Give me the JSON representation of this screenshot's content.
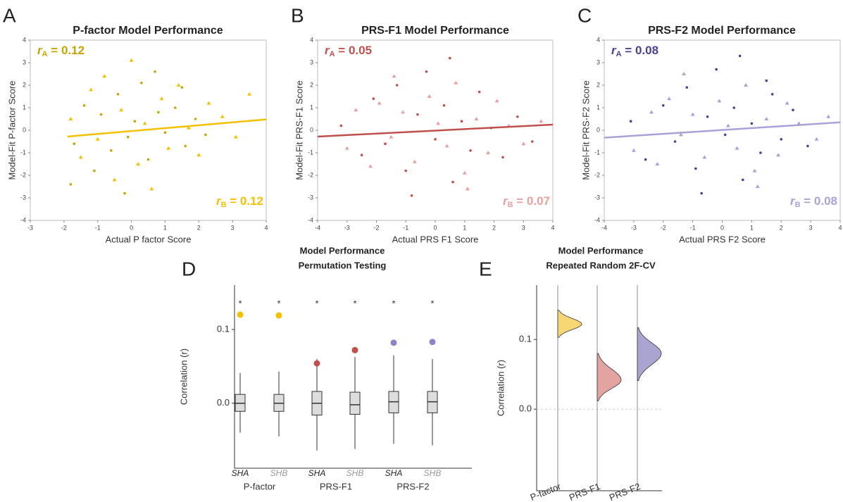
{
  "chart_data": [
    {
      "type": "scatter",
      "panel_label": "A",
      "title": "P-factor Model Performance",
      "x_label": "Actual P factor Score",
      "y_label": "Model-Fit P-factor Score",
      "xlim": [
        -3,
        4
      ],
      "ylim": [
        -4,
        4
      ],
      "xticks": [
        -3,
        -2,
        -1,
        0,
        1,
        2,
        3,
        4
      ],
      "yticks": [
        -4,
        -3,
        -2,
        -1,
        0,
        1,
        2,
        3,
        4
      ],
      "series": [
        {
          "color": "#f5c000",
          "marker": "triangle",
          "x": [
            -1.8,
            -1.5,
            -1.2,
            -1.0,
            -0.8,
            -0.5,
            -0.3,
            0.0,
            0.2,
            0.4,
            0.6,
            0.9,
            1.1,
            1.4,
            1.7,
            2.0,
            2.3,
            2.7,
            3.1,
            3.5
          ],
          "values": [
            0.5,
            -1.2,
            1.8,
            -0.4,
            2.4,
            -2.2,
            0.9,
            3.1,
            -1.5,
            0.3,
            -2.6,
            1.4,
            -0.8,
            2.0,
            0.1,
            -1.1,
            1.2,
            0.6,
            -0.3,
            1.6
          ]
        },
        {
          "color": "#c8a400",
          "marker": "circle",
          "x": [
            -1.7,
            -1.4,
            -1.1,
            -0.9,
            -0.6,
            -0.4,
            -0.1,
            0.1,
            0.3,
            0.5,
            0.8,
            1.0,
            1.3,
            1.6,
            1.9,
            2.2,
            -1.8,
            -0.2,
            0.7,
            1.5
          ],
          "values": [
            -0.6,
            1.1,
            -1.8,
            0.7,
            -0.9,
            1.6,
            -0.3,
            0.4,
            2.1,
            -1.3,
            0.8,
            -0.1,
            1.0,
            -0.7,
            0.5,
            -0.2,
            -2.4,
            -2.8,
            2.6,
            1.9
          ]
        }
      ],
      "fit": {
        "color": "#f5c000",
        "x": [
          -1.9,
          4
        ],
        "values": [
          -0.28,
          0.48
        ]
      },
      "annotations": [
        {
          "var": "r",
          "sub": "A",
          "text": " = 0.12",
          "color": "#c8a400"
        },
        {
          "var": "r",
          "sub": "B",
          "text": " = 0.12",
          "color": "#f5c000"
        }
      ]
    },
    {
      "type": "scatter",
      "panel_label": "B",
      "title": "PRS-F1 Model Performance",
      "x_label": "Actual PRS F1 Score",
      "y_label": "Model-Fit PRS-F1 Score",
      "xlim": [
        -4,
        4
      ],
      "ylim": [
        -4,
        4
      ],
      "xticks": [
        -4,
        -3,
        -2,
        -1,
        0,
        1,
        2,
        3,
        4
      ],
      "yticks": [
        -4,
        -3,
        -2,
        -1,
        0,
        1,
        2,
        3,
        4
      ],
      "series": [
        {
          "color": "#c0504d",
          "marker": "circle",
          "x": [
            -3.2,
            -2.5,
            -2.1,
            -1.7,
            -1.3,
            -1.0,
            -0.6,
            -0.3,
            0.0,
            0.3,
            0.6,
            0.9,
            1.2,
            1.5,
            1.9,
            2.3,
            2.8,
            3.3,
            -0.8,
            0.5
          ],
          "values": [
            0.2,
            -1.1,
            1.4,
            -0.6,
            2.0,
            -1.8,
            0.7,
            2.6,
            -0.4,
            1.1,
            -2.3,
            0.4,
            -0.9,
            1.7,
            0.1,
            -1.2,
            0.6,
            -0.5,
            -2.9,
            3.2
          ]
        },
        {
          "color": "#e8a0a0",
          "marker": "triangle",
          "x": [
            -3.0,
            -2.7,
            -2.2,
            -1.9,
            -1.5,
            -1.1,
            -0.7,
            -0.2,
            0.1,
            0.4,
            0.7,
            1.0,
            1.4,
            1.8,
            2.1,
            2.5,
            3.0,
            3.6,
            -1.4,
            1.1
          ],
          "values": [
            -0.8,
            0.9,
            -1.6,
            1.2,
            -0.3,
            0.8,
            -1.4,
            1.5,
            0.3,
            -0.7,
            2.1,
            -1.9,
            0.5,
            -1.0,
            1.3,
            0.2,
            -0.6,
            0.4,
            2.4,
            -2.6
          ]
        }
      ],
      "fit": {
        "color": "#c0504d",
        "x": [
          -4,
          4
        ],
        "values": [
          -0.28,
          0.25
        ]
      },
      "annotations": [
        {
          "var": "r",
          "sub": "A",
          "text": " = 0.05",
          "color": "#c0504d"
        },
        {
          "var": "r",
          "sub": "B",
          "text": " = 0.07",
          "color": "#e8a0a0"
        }
      ]
    },
    {
      "type": "scatter",
      "panel_label": "C",
      "title": "PRS-F2 Model Performance",
      "x_label": "Actual PRS F2 Score",
      "y_label": "Model-Fit PRS-F2 Score",
      "xlim": [
        -4,
        4
      ],
      "ylim": [
        -4,
        4
      ],
      "xticks": [
        -4,
        -3,
        -2,
        -1,
        0,
        1,
        2,
        3,
        4
      ],
      "yticks": [
        -4,
        -3,
        -2,
        -1,
        0,
        1,
        2,
        3,
        4
      ],
      "series": [
        {
          "color": "#4a3f98",
          "marker": "circle",
          "x": [
            -3.1,
            -2.6,
            -2.0,
            -1.6,
            -1.2,
            -0.9,
            -0.5,
            -0.2,
            0.1,
            0.4,
            0.7,
            1.0,
            1.3,
            1.7,
            2.0,
            2.4,
            2.9,
            -0.7,
            0.6,
            1.5
          ],
          "values": [
            0.4,
            -1.3,
            1.1,
            -0.5,
            1.9,
            -1.7,
            0.6,
            2.7,
            -0.2,
            1.0,
            -2.2,
            0.3,
            -1.0,
            1.6,
            -0.4,
            0.9,
            -0.7,
            -2.8,
            3.3,
            2.2
          ]
        },
        {
          "color": "#a8a2d8",
          "marker": "triangle",
          "x": [
            -3.0,
            -2.4,
            -2.2,
            -1.8,
            -1.4,
            -1.0,
            -0.6,
            -0.1,
            0.2,
            0.5,
            0.8,
            1.1,
            1.5,
            1.9,
            2.2,
            2.6,
            3.2,
            3.6,
            -1.3,
            1.2
          ],
          "values": [
            -0.9,
            0.8,
            -1.5,
            1.4,
            -0.2,
            0.7,
            -1.2,
            1.3,
            0.2,
            -0.8,
            2.0,
            -1.8,
            0.5,
            -1.1,
            1.2,
            0.3,
            -0.4,
            0.6,
            2.5,
            -2.5
          ]
        }
      ],
      "fit": {
        "color": "#a8a2d8",
        "x": [
          -4,
          4
        ],
        "values": [
          -0.33,
          0.35
        ]
      },
      "annotations": [
        {
          "var": "r",
          "sub": "A",
          "text": " = 0.08",
          "color": "#4a3f98"
        },
        {
          "var": "r",
          "sub": "B",
          "text": " = 0.08",
          "color": "#a8a2d8"
        }
      ]
    },
    {
      "type": "box",
      "panel_label": "D",
      "title": [
        "Model Performance",
        "Permutation Testing"
      ],
      "y_label": "Correlation (r)",
      "ylim": [
        -0.088,
        0.16
      ],
      "yticks": [
        {
          "value": 0,
          "label": "0.0"
        },
        0.1
      ],
      "categories": [
        "SHA",
        "SHB",
        "SHA",
        "SHB",
        "SHA",
        "SHB"
      ],
      "groups": [
        "P-factor",
        "PRS-F1",
        "PRS-F2"
      ],
      "low": [
        -0.04,
        -0.045,
        -0.064,
        -0.062,
        -0.055,
        -0.057
      ],
      "q1": [
        -0.011,
        -0.011,
        -0.016,
        -0.015,
        -0.013,
        -0.013
      ],
      "median": [
        0.0,
        0.0,
        0.0,
        -0.002,
        0.002,
        0.002
      ],
      "q3": [
        0.012,
        0.012,
        0.016,
        0.015,
        0.016,
        0.016
      ],
      "high": [
        0.041,
        0.043,
        0.06,
        0.063,
        0.065,
        0.06
      ],
      "observed": [
        0.12,
        0.119,
        0.054,
        0.072,
        0.082,
        0.083
      ],
      "observed_colors": [
        "#f5c000",
        "#f5c000",
        "#c0504d",
        "#c0504d",
        "#8a84c8",
        "#8a84c8"
      ],
      "significance": [
        "*",
        "*",
        "*",
        "*",
        "*",
        "*"
      ]
    },
    {
      "type": "violin",
      "panel_label": "E",
      "title": [
        "Model Performance",
        "Repeated Random 2F-CV"
      ],
      "y_label": "Correlation (r)",
      "ylim": [
        -0.117,
        0.178
      ],
      "yticks": [
        {
          "value": 0,
          "label": "0.0"
        },
        0.1
      ],
      "categories": [
        "P-factor",
        "PRS-F1",
        "PRS-F2"
      ],
      "min": [
        0.103,
        0.012,
        0.041
      ],
      "mode": [
        0.122,
        0.042,
        0.08
      ],
      "max": [
        0.142,
        0.08,
        0.117
      ],
      "colors": [
        "#f7d774",
        "#e3a3a1",
        "#a9a4d0"
      ]
    }
  ]
}
